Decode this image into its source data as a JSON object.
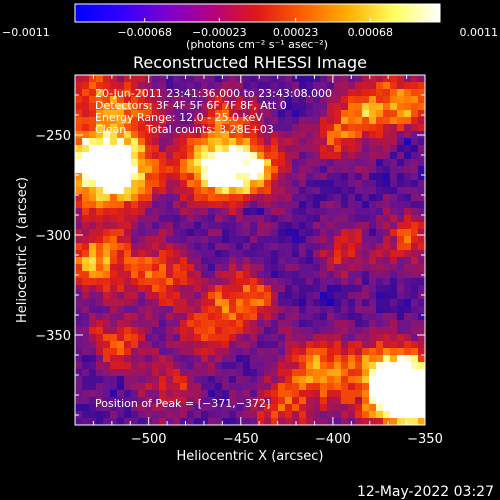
{
  "chart_data": {
    "type": "heatmap",
    "title": "Reconstructed RHESSI Image",
    "xlabel": "Heliocentric X (arcsec)",
    "ylabel": "Heliocentric Y (arcsec)",
    "xlim": [
      -540,
      -350
    ],
    "ylim": [
      -395,
      -220
    ],
    "x_ticks": [
      -500,
      -450,
      -400,
      -350
    ],
    "x_tick_labels": [
      "−500",
      "−450",
      "−400",
      "−350"
    ],
    "y_ticks": [
      -250,
      -300,
      -350
    ],
    "y_tick_labels": [
      "−250",
      "−300",
      "−350"
    ],
    "colorbar": {
      "min": -0.0011,
      "max": 0.0011,
      "ticks": [
        -0.0011,
        -0.00068,
        -0.00023,
        0.00023,
        0.00068,
        0.0011
      ],
      "tick_labels": [
        "−0.0011",
        "−0.00068",
        "−0.00023",
        "0.00023",
        "0.00068",
        "0.0011"
      ],
      "unit_label": "(photons cm⁻² s⁻¹ asec⁻²)",
      "colors": [
        "#0000ff",
        "#3000ff",
        "#7a00d0",
        "#b40080",
        "#e01818",
        "#ff6000",
        "#ffb000",
        "#ffff60",
        "#ffffff"
      ]
    },
    "annotations": {
      "time_range": "20-Jun-2011 23:41:36.000 to 23:43:08.000",
      "detectors": "Detectors: 3F 4F 5F 6F 7F 8F, Att 0",
      "energy": "Energy Range: 12.0 - 25.0 keV",
      "method": "Clean",
      "counts": "Total counts: 3.28E+03",
      "peak": "Position of Peak = [−371,−372]"
    },
    "bright_sources": [
      {
        "x": -530,
        "y": -262,
        "level": 0.95
      },
      {
        "x": -515,
        "y": -268,
        "level": 0.7
      },
      {
        "x": -470,
        "y": -265,
        "level": 0.75
      },
      {
        "x": -447,
        "y": -265,
        "level": 0.8
      },
      {
        "x": -360,
        "y": -232,
        "level": 0.55
      },
      {
        "x": -383,
        "y": -235,
        "level": 0.5
      },
      {
        "x": -400,
        "y": -248,
        "level": 0.45
      },
      {
        "x": -460,
        "y": -238,
        "level": 0.4
      },
      {
        "x": -530,
        "y": -310,
        "level": 0.7
      },
      {
        "x": -495,
        "y": -318,
        "level": 0.55
      },
      {
        "x": -450,
        "y": -330,
        "level": 0.6
      },
      {
        "x": -470,
        "y": -345,
        "level": 0.45
      },
      {
        "x": -520,
        "y": -352,
        "level": 0.5
      },
      {
        "x": -490,
        "y": -375,
        "level": 0.4
      },
      {
        "x": -410,
        "y": -365,
        "level": 0.65
      },
      {
        "x": -371,
        "y": -372,
        "level": 1.0
      },
      {
        "x": -355,
        "y": -380,
        "level": 0.85
      },
      {
        "x": -430,
        "y": -385,
        "level": 0.45
      },
      {
        "x": -395,
        "y": -305,
        "level": 0.4
      },
      {
        "x": -360,
        "y": -300,
        "level": 0.45
      },
      {
        "x": -530,
        "y": -228,
        "level": 0.5
      },
      {
        "x": -505,
        "y": -235,
        "level": 0.45
      }
    ]
  },
  "footer": {
    "datestamp": "12-May-2022 03:27"
  }
}
